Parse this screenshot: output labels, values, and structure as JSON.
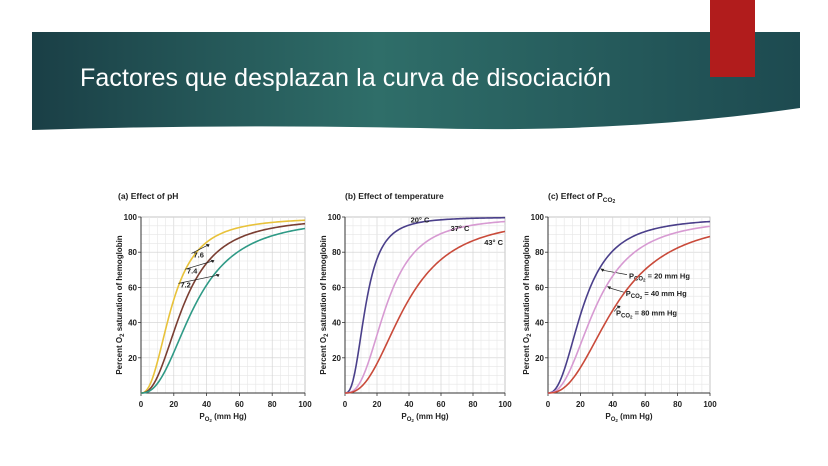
{
  "slide": {
    "title": "Factores que desplazan la curva de disociación",
    "colors": {
      "banner_dark": "#1a3f46",
      "banner_mid": "#2f6e69",
      "accent_red": "#b11c1c"
    }
  },
  "chart_data": [
    {
      "type": "line",
      "title": "(a) Effect of pH",
      "xlabel": "PO2 (mm Hg)",
      "ylabel": "Percent O2 saturation of hemoglobin",
      "xlim": [
        0,
        100
      ],
      "ylim": [
        0,
        100
      ],
      "xticks": [
        "0",
        "20",
        "40",
        "60",
        "80",
        "100"
      ],
      "yticks": [
        "20",
        "40",
        "60",
        "80",
        "100"
      ],
      "grid": true,
      "series": [
        {
          "name": "7.6",
          "color": "#e8c23a",
          "p50": 19,
          "n": 2.4,
          "label_at": [
            32,
            77
          ]
        },
        {
          "name": "7.4",
          "color": "#7a3e32",
          "p50": 26,
          "n": 2.4,
          "label_at": [
            28,
            68
          ]
        },
        {
          "name": "7.2",
          "color": "#2f9a86",
          "p50": 33,
          "n": 2.4,
          "label_at": [
            24,
            60
          ]
        }
      ]
    },
    {
      "type": "line",
      "title": "(b) Effect of temperature",
      "xlabel": "PO2 (mm Hg)",
      "ylabel": "Percent O2 saturation of hemoglobin",
      "xlim": [
        0,
        100
      ],
      "ylim": [
        0,
        100
      ],
      "xticks": [
        "0",
        "20",
        "40",
        "60",
        "80",
        "100"
      ],
      "yticks": [
        "20",
        "40",
        "60",
        "80",
        "100"
      ],
      "grid": true,
      "series": [
        {
          "name": "20° C",
          "color": "#4a3f8a",
          "p50": 13,
          "n": 2.7,
          "label_at": [
            41,
            97
          ]
        },
        {
          "name": "37° C",
          "color": "#d79ad2",
          "p50": 26,
          "n": 2.7,
          "label_at": [
            66,
            92
          ]
        },
        {
          "name": "43° C",
          "color": "#c94a3a",
          "p50": 38,
          "n": 2.5,
          "label_at": [
            87,
            84
          ]
        }
      ]
    },
    {
      "type": "line",
      "title_prefix": "(c) Effect of ",
      "title_var": "P",
      "title_sub": "CO",
      "title_subsub": "2",
      "xlabel": "PO2 (mm Hg)",
      "ylabel": "Percent O2 saturation of hemoglobin",
      "xlim": [
        0,
        100
      ],
      "ylim": [
        0,
        100
      ],
      "xticks": [
        "0",
        "20",
        "40",
        "60",
        "80",
        "100"
      ],
      "yticks": [
        "20",
        "40",
        "60",
        "80",
        "100"
      ],
      "grid": true,
      "series": [
        {
          "name_prefix": "P",
          "name_sub": "CO",
          "name_subsub": "2",
          "name_suffix": " = 20 mm Hg",
          "color": "#4a3f8a",
          "p50": 22,
          "n": 2.4,
          "label_at": [
            50,
            65
          ]
        },
        {
          "name_prefix": "P",
          "name_sub": "CO",
          "name_subsub": "2",
          "name_suffix": " = 40 mm Hg",
          "color": "#d79ad2",
          "p50": 30,
          "n": 2.4,
          "label_at": [
            48,
            55
          ]
        },
        {
          "name_prefix": "P",
          "name_sub": "CO",
          "name_subsub": "2",
          "name_suffix": " = 80 mm Hg",
          "color": "#c94a3a",
          "p50": 42,
          "n": 2.4,
          "label_at": [
            42,
            44
          ]
        }
      ]
    }
  ],
  "labels": {
    "xlabel_main": "P",
    "xlabel_sub": "O",
    "xlabel_subsub": "2",
    "xlabel_rest": " (mm Hg)",
    "ylabel_pre": "Percent O",
    "ylabel_sub": "2",
    "ylabel_post": " saturation of hemoglobin"
  }
}
